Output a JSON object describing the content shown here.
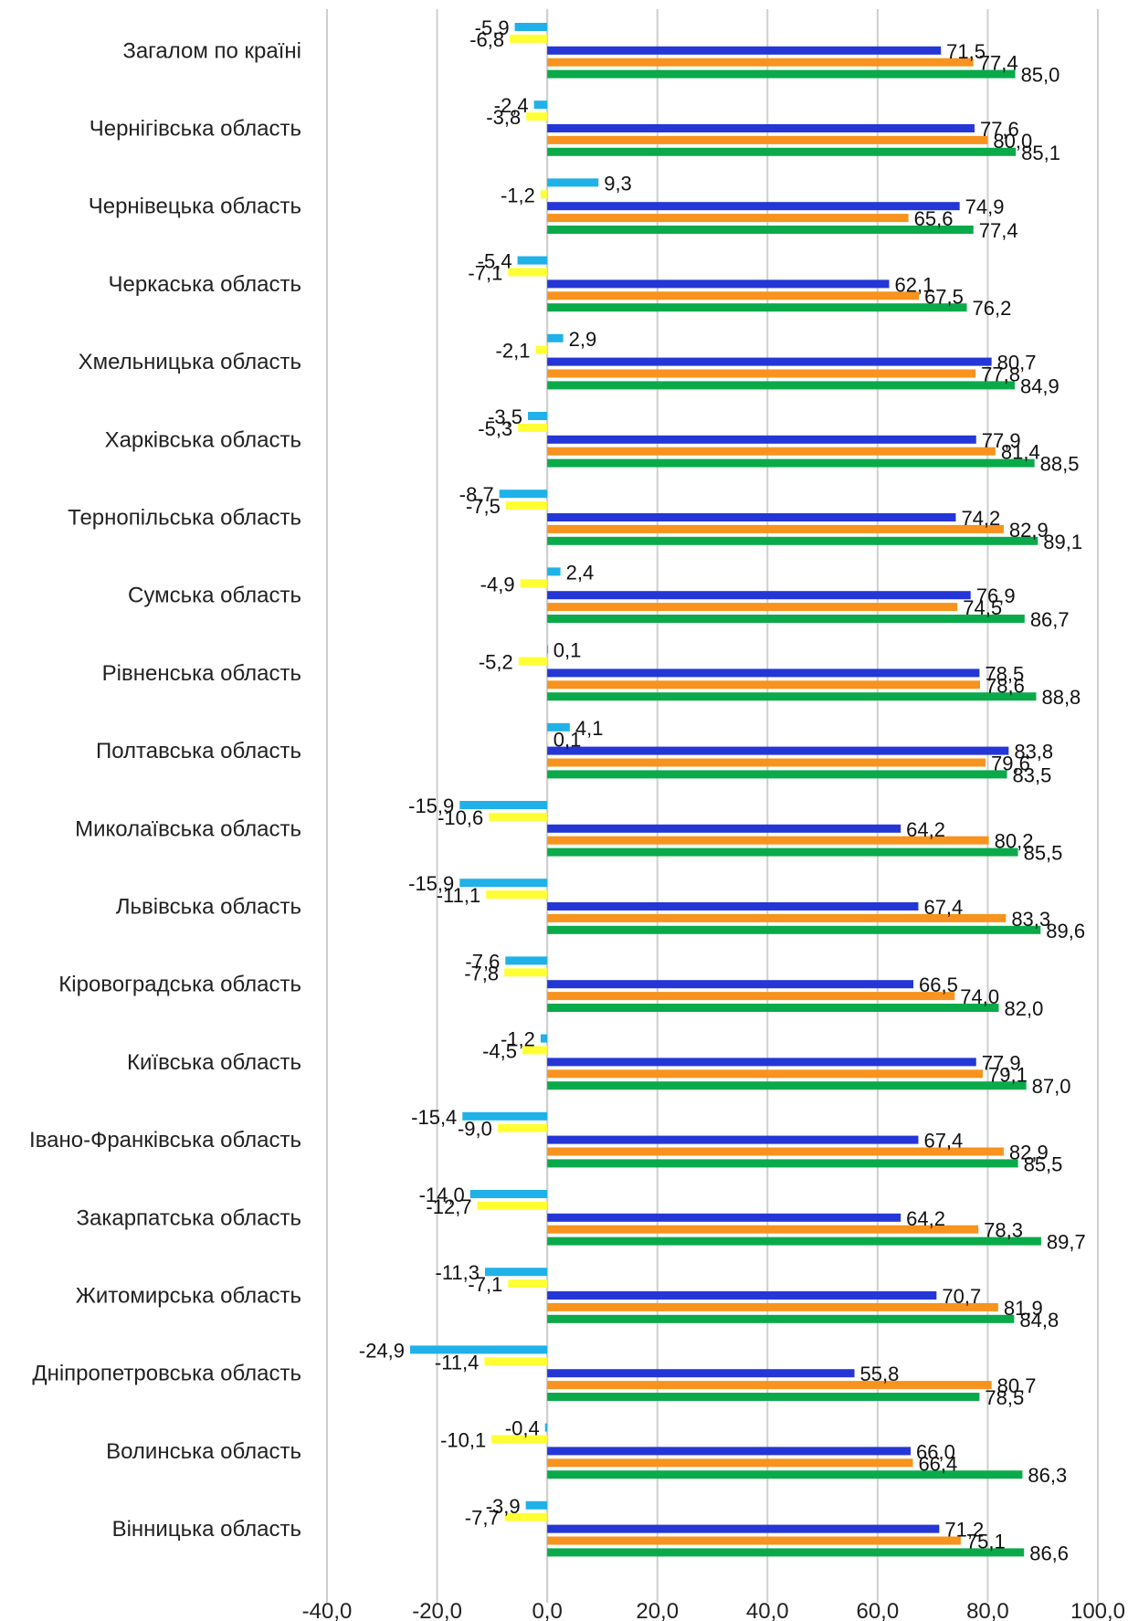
{
  "chart_data": {
    "type": "bar",
    "orientation": "horizontal",
    "grid": true,
    "xlim": [
      -40,
      100
    ],
    "x_ticks": [
      -40,
      -20,
      0,
      20,
      40,
      60,
      80,
      100
    ],
    "x_tick_labels": [
      "-40,0",
      "-20,0",
      "0,0",
      "20,0",
      "40,0",
      "60,0",
      "80,0",
      "100,0"
    ],
    "categories": [
      "Загалом по країні",
      "Чернігівська область",
      "Чернівецька область",
      "Черкаська область",
      "Хмельницька область",
      "Харківська область",
      "Тернопільська область",
      "Сумська область",
      "Рівненська область",
      "Полтавська область",
      "Миколаївська область",
      "Львівська область",
      "Кіровоградська область",
      "Київська область",
      "Івано-Франківська область",
      "Закарпатська область",
      "Житомирська область",
      "Дніпропетровська область",
      "Волинська область",
      "Вінницька область"
    ],
    "series": [
      {
        "color": "#1fb1e8",
        "values": [
          -5.9,
          -2.4,
          9.3,
          -5.4,
          2.9,
          -3.5,
          -8.7,
          2.4,
          0.1,
          4.1,
          -15.9,
          -15.9,
          -7.6,
          -1.2,
          -15.4,
          -14.0,
          -11.3,
          -24.9,
          -0.4,
          -3.9
        ],
        "labels": [
          "-5,9",
          "-2,4",
          "9,3",
          "-5,4",
          "2,9",
          "-3,5",
          "-8,7",
          "2,4",
          "0,1",
          "4,1",
          "-15,9",
          "-15,9",
          "-7,6",
          "-1,2",
          "-15,4",
          "-14,0",
          "-11,3",
          "-24,9",
          "-0,4",
          "-3,9"
        ]
      },
      {
        "color": "#ffff33",
        "values": [
          -6.8,
          -3.8,
          -1.2,
          -7.1,
          -2.1,
          -5.3,
          -7.5,
          -4.9,
          -5.2,
          0.1,
          -10.6,
          -11.1,
          -7.8,
          -4.5,
          -9.0,
          -12.7,
          -7.1,
          -11.4,
          -10.1,
          -7.7
        ],
        "labels": [
          "-6,8",
          "-3,8",
          "-1,2",
          "-7,1",
          "-2,1",
          "-5,3",
          "-7,5",
          "-4,9",
          "-5,2",
          "0,1",
          "-10,6",
          "-11,1",
          "-7,8",
          "-4,5",
          "-9,0",
          "-12,7",
          "-7,1",
          "-11,4",
          "-10,1",
          "-7,7"
        ]
      },
      {
        "color": "#2536d6",
        "values": [
          71.5,
          77.6,
          74.9,
          62.1,
          80.7,
          77.9,
          74.2,
          76.9,
          78.5,
          83.8,
          64.2,
          67.4,
          66.5,
          77.9,
          67.4,
          64.2,
          70.7,
          55.8,
          66.0,
          71.2
        ],
        "labels": [
          "71,5",
          "77,6",
          "74,9",
          "62,1",
          "80,7",
          "77,9",
          "74,2",
          "76,9",
          "78,5",
          "83,8",
          "64,2",
          "67,4",
          "66,5",
          "77,9",
          "67,4",
          "64,2",
          "70,7",
          "55,8",
          "66,0",
          "71,2"
        ]
      },
      {
        "color": "#f7931e",
        "values": [
          77.4,
          80.0,
          65.6,
          67.5,
          77.8,
          81.4,
          82.9,
          74.5,
          78.6,
          79.6,
          80.2,
          83.3,
          74.0,
          79.1,
          82.9,
          78.3,
          81.9,
          80.7,
          66.4,
          75.1
        ],
        "labels": [
          "77,4",
          "80,0",
          "65,6",
          "67,5",
          "77,8",
          "81,4",
          "82,9",
          "74,5",
          "78,6",
          "79,6",
          "80,2",
          "83,3",
          "74,0",
          "79,1",
          "82,9",
          "78,3",
          "81,9",
          "80,7",
          "66,4",
          "75,1"
        ]
      },
      {
        "color": "#0aaa4a",
        "values": [
          85.0,
          85.1,
          77.4,
          76.2,
          84.9,
          88.5,
          89.1,
          86.7,
          88.8,
          83.5,
          85.5,
          89.6,
          82.0,
          87.0,
          85.5,
          89.7,
          84.8,
          78.5,
          86.3,
          86.6
        ],
        "labels": [
          "85,0",
          "85,1",
          "77,4",
          "76,2",
          "84,9",
          "88,5",
          "89,1",
          "86,7",
          "88,8",
          "83,5",
          "85,5",
          "89,6",
          "82,0",
          "87,0",
          "85,5",
          "89,7",
          "84,8",
          "78,5",
          "86,3",
          "86,6"
        ]
      }
    ]
  }
}
